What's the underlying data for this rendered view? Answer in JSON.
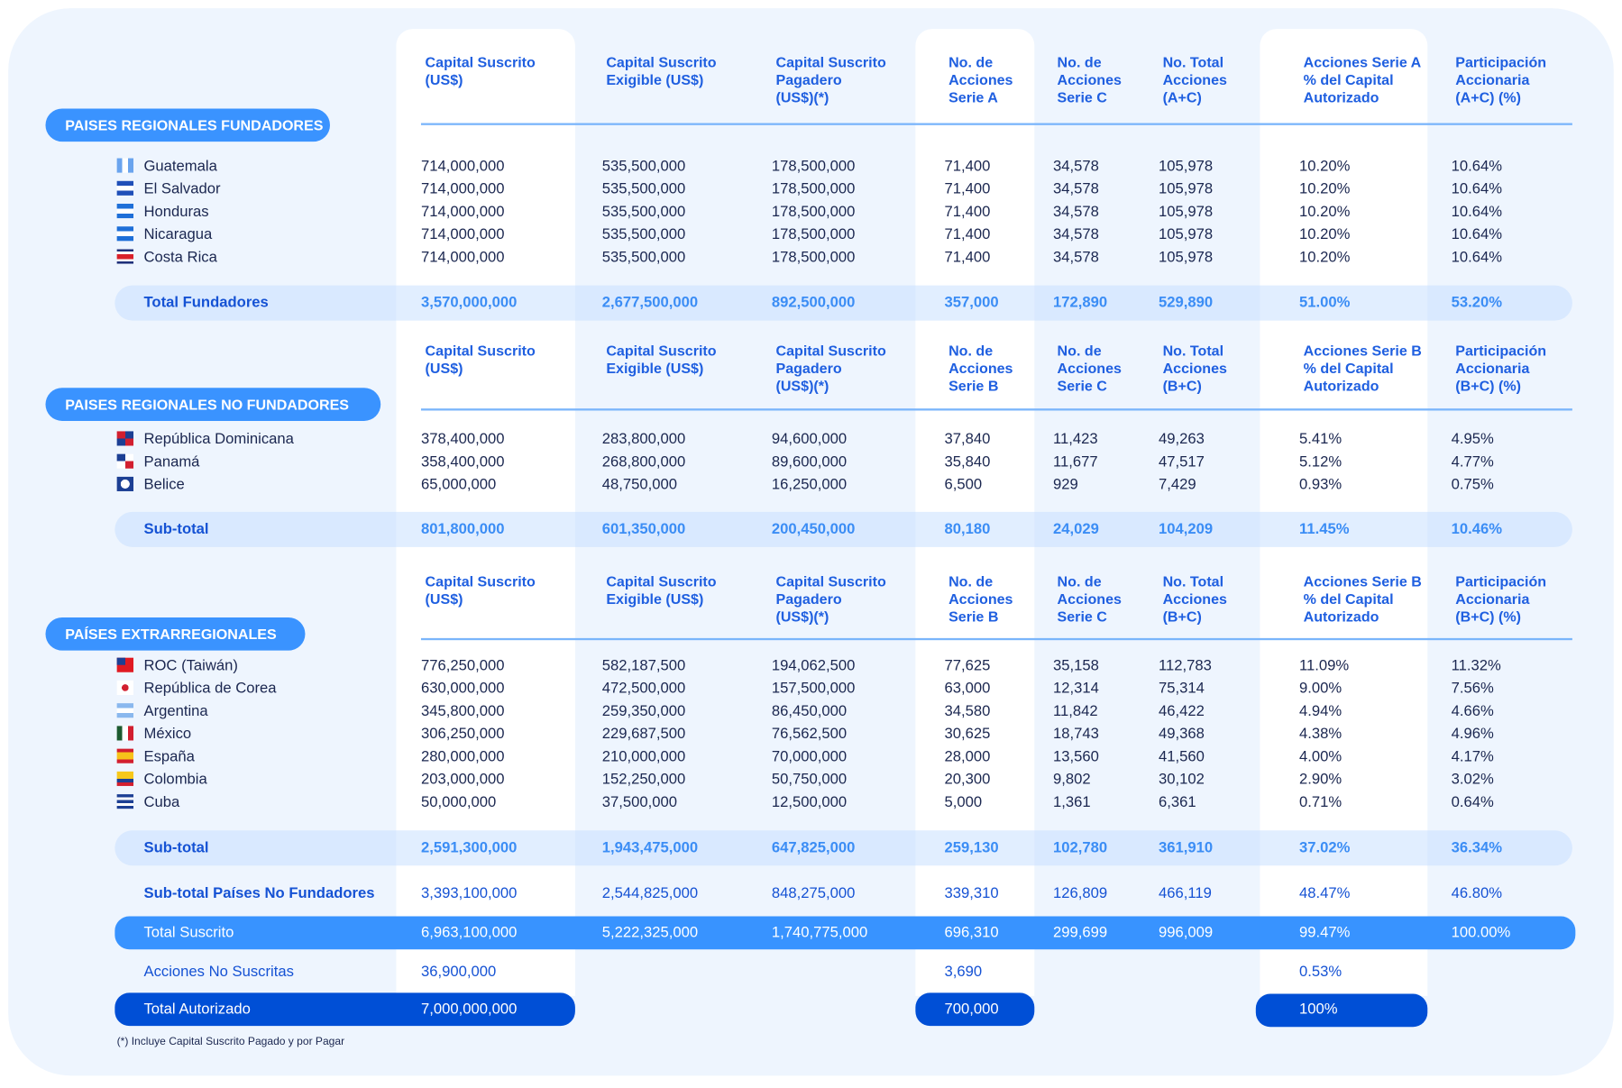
{
  "columns_x_note_removed": null,
  "sections": [
    {
      "title": "PAISES REGIONALES FUNDADORES",
      "headers": [
        "Capital Suscrito\n(US$)",
        "Capital Suscrito\nExigible (US$)",
        "Capital Suscrito\nPagadero\n(US$)(*)",
        "No. de\nAcciones\nSerie A",
        "No. de\nAcciones\nSerie C",
        "No. Total\nAcciones\n(A+C)",
        "Acciones Serie A\n% del Capital\nAutorizado",
        "Participación\nAccionaria\n(A+C) (%)"
      ],
      "rows": [
        {
          "flag": "flag-guatemala",
          "name": "Guatemala",
          "values": [
            "714,000,000",
            "535,500,000",
            "178,500,000",
            "71,400",
            "34,578",
            "105,978",
            "10.20%",
            "10.64%"
          ]
        },
        {
          "flag": "flag-el-salvador",
          "name": "El Salvador",
          "values": [
            "714,000,000",
            "535,500,000",
            "178,500,000",
            "71,400",
            "34,578",
            "105,978",
            "10.20%",
            "10.64%"
          ]
        },
        {
          "flag": "flag-honduras",
          "name": "Honduras",
          "values": [
            "714,000,000",
            "535,500,000",
            "178,500,000",
            "71,400",
            "34,578",
            "105,978",
            "10.20%",
            "10.64%"
          ]
        },
        {
          "flag": "flag-nicaragua",
          "name": "Nicaragua",
          "values": [
            "714,000,000",
            "535,500,000",
            "178,500,000",
            "71,400",
            "34,578",
            "105,978",
            "10.20%",
            "10.64%"
          ]
        },
        {
          "flag": "flag-costa-rica",
          "name": "Costa Rica",
          "values": [
            "714,000,000",
            "535,500,000",
            "178,500,000",
            "71,400",
            "34,578",
            "105,978",
            "10.20%",
            "10.64%"
          ]
        }
      ],
      "total": {
        "label": "Total Fundadores",
        "values": [
          "3,570,000,000",
          "2,677,500,000",
          "892,500,000",
          "357,000",
          "172,890",
          "529,890",
          "51.00%",
          "53.20%"
        ]
      }
    },
    {
      "title": "PAISES REGIONALES NO FUNDADORES",
      "headers": [
        "Capital Suscrito\n(US$)",
        "Capital Suscrito\nExigible (US$)",
        "Capital Suscrito\nPagadero\n(US$)(*)",
        "No. de\nAcciones\nSerie B",
        "No. de\nAcciones\nSerie C",
        "No. Total\nAcciones\n(B+C)",
        "Acciones Serie B\n% del Capital\nAutorizado",
        "Participación\nAccionaria\n(B+C) (%)"
      ],
      "rows": [
        {
          "flag": "flag-republica-dominicana",
          "name": "República Dominicana",
          "values": [
            "378,400,000",
            "283,800,000",
            "94,600,000",
            "37,840",
            "11,423",
            "49,263",
            "5.41%",
            "4.95%"
          ]
        },
        {
          "flag": "flag-panama",
          "name": "Panamá",
          "values": [
            "358,400,000",
            "268,800,000",
            "89,600,000",
            "35,840",
            "11,677",
            "47,517",
            "5.12%",
            "4.77%"
          ]
        },
        {
          "flag": "flag-belice",
          "name": "Belice",
          "values": [
            "65,000,000",
            "48,750,000",
            "16,250,000",
            "6,500",
            "929",
            "7,429",
            "0.93%",
            "0.75%"
          ]
        }
      ],
      "total": {
        "label": "Sub-total",
        "values": [
          "801,800,000",
          "601,350,000",
          "200,450,000",
          "80,180",
          "24,029",
          "104,209",
          "11.45%",
          "10.46%"
        ]
      }
    },
    {
      "title": "PAÍSES EXTRARREGIONALES",
      "headers": [
        "Capital Suscrito\n(US$)",
        "Capital Suscrito\nExigible (US$)",
        "Capital Suscrito\nPagadero\n(US$)(*)",
        "No. de\nAcciones\nSerie B",
        "No. de\nAcciones\nSerie C",
        "No. Total\nAcciones\n(B+C)",
        "Acciones Serie B\n% del Capital\nAutorizado",
        "Participación\nAccionaria\n(B+C) (%)"
      ],
      "rows": [
        {
          "flag": "flag-taiwan",
          "name": "ROC (Taiwán)",
          "values": [
            "776,250,000",
            "582,187,500",
            "194,062,500",
            "77,625",
            "35,158",
            "112,783",
            "11.09%",
            "11.32%"
          ]
        },
        {
          "flag": "flag-corea",
          "name": "República de Corea",
          "values": [
            "630,000,000",
            "472,500,000",
            "157,500,000",
            "63,000",
            "12,314",
            "75,314",
            "9.00%",
            "7.56%"
          ]
        },
        {
          "flag": "flag-argentina",
          "name": "Argentina",
          "values": [
            "345,800,000",
            "259,350,000",
            "86,450,000",
            "34,580",
            "11,842",
            "46,422",
            "4.94%",
            "4.66%"
          ]
        },
        {
          "flag": "flag-mexico",
          "name": "México",
          "values": [
            "306,250,000",
            "229,687,500",
            "76,562,500",
            "30,625",
            "18,743",
            "49,368",
            "4.38%",
            "4.96%"
          ]
        },
        {
          "flag": "flag-espana",
          "name": "España",
          "values": [
            "280,000,000",
            "210,000,000",
            "70,000,000",
            "28,000",
            "13,560",
            "41,560",
            "4.00%",
            "4.17%"
          ]
        },
        {
          "flag": "flag-colombia",
          "name": "Colombia",
          "values": [
            "203,000,000",
            "152,250,000",
            "50,750,000",
            "20,300",
            "9,802",
            "30,102",
            "2.90%",
            "3.02%"
          ]
        },
        {
          "flag": "flag-cuba",
          "name": "Cuba",
          "values": [
            "50,000,000",
            "37,500,000",
            "12,500,000",
            "5,000",
            "1,361",
            "6,361",
            "0.71%",
            "0.64%"
          ]
        }
      ],
      "total": {
        "label": "Sub-total",
        "values": [
          "2,591,300,000",
          "1,943,475,000",
          "647,825,000",
          "259,130",
          "102,780",
          "361,910",
          "37.02%",
          "36.34%"
        ]
      }
    }
  ],
  "subtotal_no_fundadores": {
    "label": "Sub-total Países No Fundadores",
    "values": [
      "3,393,100,000",
      "2,544,825,000",
      "848,275,000",
      "339,310",
      "126,809",
      "466,119",
      "48.47%",
      "46.80%"
    ]
  },
  "total_suscrito": {
    "label": "Total Suscrito",
    "values": [
      "6,963,100,000",
      "5,222,325,000",
      "1,740,775,000",
      "696,310",
      "299,699",
      "996,009",
      "99.47%",
      "100.00%"
    ]
  },
  "acciones_no_suscritas": {
    "label": "Acciones No Suscritas",
    "capital": "36,900,000",
    "acciones": "3,690",
    "porcentaje": "0.53%"
  },
  "total_autorizado": {
    "label": "Total Autorizado",
    "capital": "7,000,000,000",
    "acciones": "700,000",
    "porcentaje": "100%"
  },
  "footnote": "(*) Incluye Capital Suscrito Pagado y por Pagar",
  "colors": {
    "accent": "#3893ff",
    "dark": "#004fd6",
    "header_text": "#1f5fe0",
    "body_text": "#1b2750",
    "panel": "#eef5fe"
  }
}
